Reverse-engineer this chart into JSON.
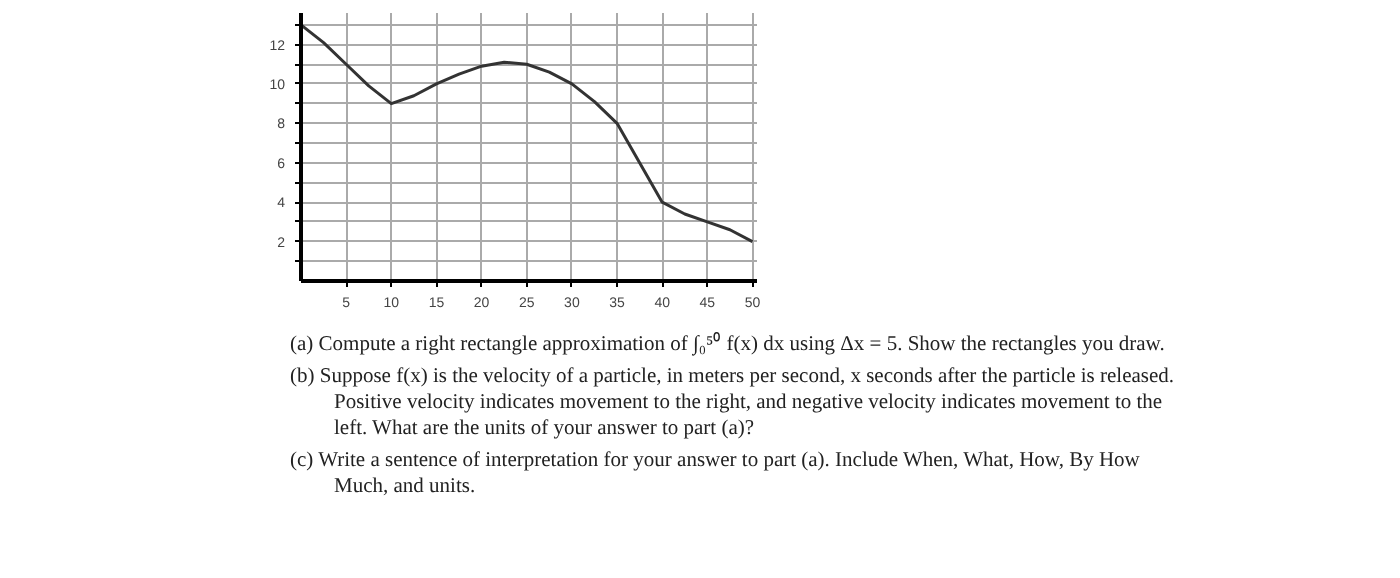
{
  "chart_data": {
    "type": "line",
    "x": [
      0,
      2.5,
      5,
      7.5,
      10,
      12.5,
      15,
      17.5,
      20,
      22.5,
      25,
      27.5,
      30,
      32.5,
      35,
      37.5,
      40,
      42.5,
      45,
      47.5,
      50
    ],
    "series": [
      {
        "color": "#333333",
        "values": [
          13,
          12.1,
          11,
          9.9,
          9,
          9.4,
          10,
          10.5,
          10.9,
          11.1,
          11,
          10.6,
          10,
          9.1,
          8,
          6,
          4,
          3.4,
          3,
          2.6,
          2
        ]
      }
    ],
    "xlim": [
      0,
      50.5
    ],
    "ylim": [
      0,
      13.6
    ],
    "xticks": [
      5,
      10,
      15,
      20,
      25,
      30,
      35,
      40,
      45,
      50
    ],
    "yticks": [
      {
        "value": 1,
        "label": null
      },
      2,
      {
        "value": 3,
        "label": null
      },
      4,
      {
        "value": 5,
        "label": null
      },
      6,
      {
        "value": 7,
        "label": null
      },
      8,
      {
        "value": 9,
        "label": null
      },
      10,
      {
        "value": 11,
        "label": null
      },
      12,
      {
        "value": 13,
        "label": null
      }
    ],
    "grid": true,
    "marker": "none",
    "line_style": "solid",
    "annotations": [
      "(a) Compute a right rectangle approximation of ∫₀⁵⁰ f(x) dx using Δx = 5. Show the rectangles you draw.",
      "(b) Suppose f(x) is the velocity of a particle, in meters per second, x seconds after the particle is released. Positive velocity indicates movement to the right, and negative velocity indicates movement to the left. What are the units of your answer to part (a)?",
      "(c) Write a sentence of interpretation for your answer to part (a). Include When, What, How, By How Much, and units."
    ]
  }
}
